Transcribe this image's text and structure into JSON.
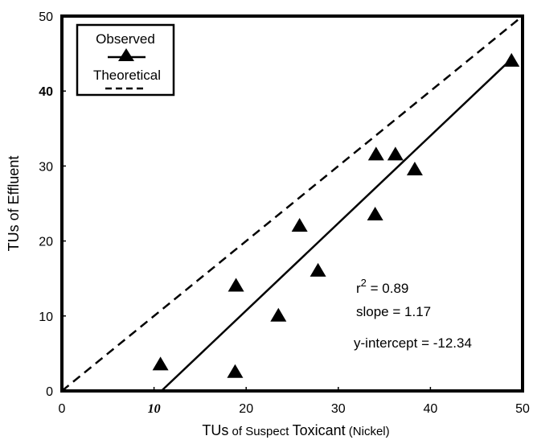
{
  "chart_data": {
    "type": "scatter",
    "xlabel_parts": {
      "part1": "TUs",
      "part2": " of Suspect ",
      "part3": "Toxicant",
      "part4": " (Nickel)"
    },
    "ylabel": "TUs of Effluent",
    "xlim": [
      0,
      50
    ],
    "ylim": [
      0,
      50
    ],
    "x_ticks": [
      {
        "value": 0,
        "label": "0",
        "bold": false
      },
      {
        "value": 10,
        "label": "10",
        "bold": true
      },
      {
        "value": 20,
        "label": "20",
        "bold": false
      },
      {
        "value": 30,
        "label": "30",
        "bold": false
      },
      {
        "value": 40,
        "label": "40",
        "bold": false
      },
      {
        "value": 50,
        "label": "50",
        "bold": false
      }
    ],
    "y_ticks": [
      {
        "value": 0,
        "label": "0",
        "bold": false
      },
      {
        "value": 10,
        "label": "10",
        "bold": false
      },
      {
        "value": 20,
        "label": "20",
        "bold": false
      },
      {
        "value": 30,
        "label": "30",
        "bold": false
      },
      {
        "value": 40,
        "label": "40",
        "bold": true
      },
      {
        "value": 50,
        "label": "50",
        "bold": false
      }
    ],
    "series": [
      {
        "name": "Observed",
        "marker": "triangle",
        "x": [
          10.7,
          18.8,
          18.9,
          23.5,
          25.8,
          27.8,
          34.0,
          34.1,
          36.2,
          38.3,
          48.8
        ],
        "y": [
          3.5,
          2.5,
          14.0,
          10.0,
          22.0,
          16.0,
          23.5,
          31.5,
          31.5,
          29.5,
          44.0
        ]
      }
    ],
    "fit_line": {
      "name": "Observed",
      "x": [
        10.8,
        48.9
      ],
      "y": [
        0,
        44.4
      ],
      "style": "solid"
    },
    "theoretical_line": {
      "name": "Theoretical",
      "x": [
        0,
        50
      ],
      "y": [
        0,
        50
      ],
      "style": "dashed"
    },
    "legend": {
      "position": "top-left",
      "observed": "Observed",
      "theoretical": "Theoretical"
    },
    "annotations": {
      "r_label": "r",
      "r_exponent": "2",
      "r_value": " = 0.89",
      "slope": "slope = 1.17",
      "intercept": "y-intercept  =  -12.34"
    },
    "grid": false
  }
}
